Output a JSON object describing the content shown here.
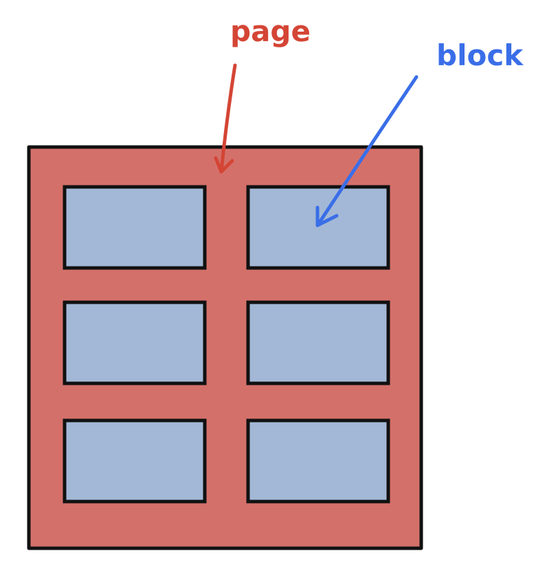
{
  "labels": {
    "page": "page",
    "block": "block"
  },
  "colors": {
    "page_fill": "#d4706a",
    "block_fill": "#a3b8d6",
    "outline": "#111111",
    "page_label": "#d44535",
    "block_label": "#3a6ee8"
  },
  "grid": {
    "rows": 3,
    "columns": 2
  },
  "arrows": [
    {
      "from": "page",
      "to": "page-rectangle"
    },
    {
      "from": "block",
      "to": "top-right-block"
    }
  ]
}
